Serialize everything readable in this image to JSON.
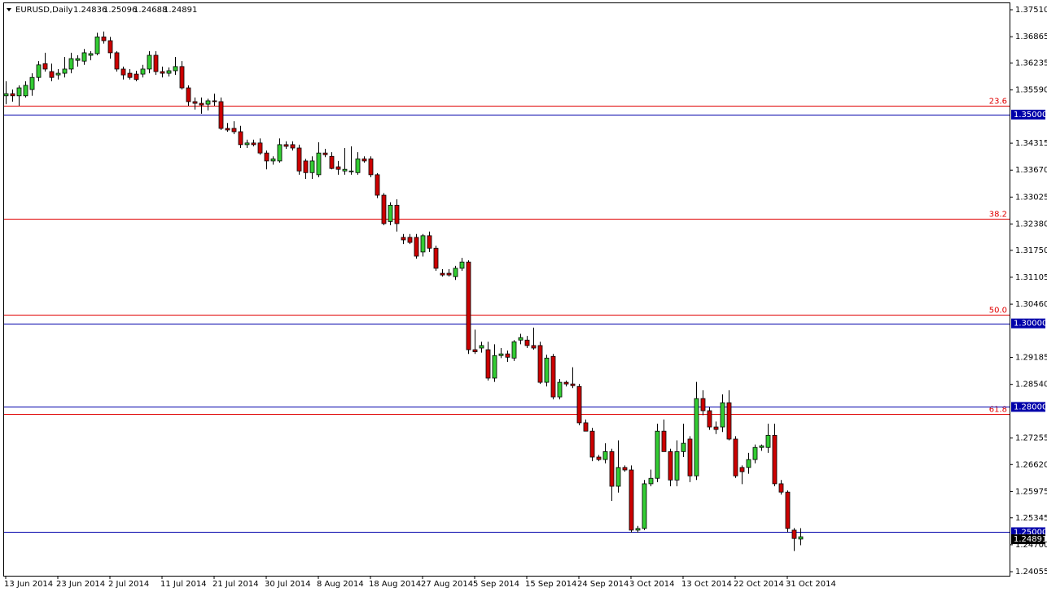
{
  "chart_data": {
    "type": "candlestick",
    "title": "EURUSD,Daily",
    "categories": [
      "13 Jun 2014",
      null,
      null,
      null,
      null,
      null,
      null,
      null,
      "23 Jun 2014",
      null,
      null,
      null,
      null,
      null,
      null,
      null,
      "2 Jul 2014",
      null,
      null,
      null,
      null,
      null,
      null,
      null,
      "11 Jul 2014",
      null,
      null,
      null,
      null,
      null,
      null,
      null,
      "21 Jul 2014",
      null,
      null,
      null,
      null,
      null,
      null,
      null,
      "30 Jul 2014",
      null,
      null,
      null,
      null,
      null,
      null,
      null,
      "8 Aug 2014",
      null,
      null,
      null,
      null,
      null,
      null,
      null,
      "18 Aug 2014",
      null,
      null,
      null,
      null,
      null,
      null,
      null,
      "27 Aug 2014",
      null,
      null,
      null,
      null,
      null,
      null,
      null,
      "5 Sep 2014",
      null,
      null,
      null,
      null,
      null,
      null,
      null,
      "15 Sep 2014",
      null,
      null,
      null,
      null,
      null,
      null,
      null,
      "24 Sep 2014",
      null,
      null,
      null,
      null,
      null,
      null,
      null,
      "3 Oct 2014",
      null,
      null,
      null,
      null,
      null,
      null,
      null,
      "13 Oct 2014",
      null,
      null,
      null,
      null,
      null,
      null,
      null,
      "22 Oct 2014",
      null,
      null,
      null,
      null,
      null,
      null,
      null,
      "31 Oct 2014",
      null,
      null
    ],
    "open": [
      1.3545,
      1.355,
      1.3545,
      1.3545,
      1.356,
      1.3589,
      1.3622,
      1.3603,
      1.3595,
      1.3599,
      1.3609,
      1.363,
      1.3628,
      1.3642,
      1.3646,
      1.3686,
      1.3677,
      1.3648,
      1.3609,
      1.3599,
      1.3597,
      1.3597,
      1.3609,
      1.3642,
      1.3603,
      1.3599,
      1.3605,
      1.3615,
      1.3564,
      1.3531,
      1.3527,
      1.3525,
      1.3533,
      1.3531,
      1.3467,
      1.3467,
      1.3459,
      1.3428,
      1.3432,
      1.3432,
      1.3408,
      1.3389,
      1.3389,
      1.3428,
      1.3428,
      1.342,
      1.3389,
      1.3361,
      1.3356,
      1.3408,
      1.34,
      1.3375,
      1.3365,
      1.3365,
      1.3361,
      1.3394,
      1.3394,
      1.3356,
      1.3307,
      1.3244,
      1.3283,
      1.3206,
      1.3206,
      1.3206,
      1.3171,
      1.321,
      1.318,
      1.312,
      1.312,
      1.3112,
      1.3132,
      1.3147,
      1.2937,
      1.2941,
      1.2937,
      1.2869,
      1.2923,
      1.2927,
      1.2917,
      1.296,
      1.296,
      1.2947,
      1.2947,
      1.2859,
      1.2921,
      1.2824,
      1.2859,
      1.2855,
      1.2849,
      1.2762,
      1.2742,
      1.268,
      1.2674,
      1.2693,
      1.261,
      1.2655,
      1.2649,
      1.2505,
      1.2509,
      1.2616,
      1.2629,
      1.2742,
      1.2693,
      1.2625,
      1.2693,
      1.2723,
      1.2635,
      1.282,
      1.2791,
      1.2752,
      1.2752,
      1.281,
      1.2723,
      1.2655,
      1.2655,
      1.2674,
      1.2703,
      1.2703,
      1.2732,
      1.2616,
      1.2596,
      1.2505,
      1.24836
    ],
    "high": [
      1.358,
      1.356,
      1.357,
      1.358,
      1.3599,
      1.3628,
      1.3648,
      1.3622,
      1.3609,
      1.3638,
      1.3648,
      1.3642,
      1.3657,
      1.3652,
      1.3696,
      1.3699,
      1.3686,
      1.3652,
      1.3615,
      1.3609,
      1.3605,
      1.3619,
      1.3652,
      1.3652,
      1.3615,
      1.3613,
      1.3638,
      1.3628,
      1.357,
      1.3541,
      1.3541,
      1.3538,
      1.355,
      1.3541,
      1.348,
      1.3484,
      1.3473,
      1.344,
      1.344,
      1.3443,
      1.3414,
      1.34,
      1.3443,
      1.3436,
      1.3436,
      1.3428,
      1.3394,
      1.34,
      1.3434,
      1.3418,
      1.341,
      1.3389,
      1.342,
      1.3424,
      1.341,
      1.34,
      1.34,
      1.336,
      1.3312,
      1.329,
      1.3297,
      1.3214,
      1.3214,
      1.3214,
      1.3214,
      1.322,
      1.3186,
      1.313,
      1.313,
      1.3138,
      1.3157,
      1.3151,
      1.2985,
      1.2956,
      1.2956,
      1.295,
      1.2941,
      1.2935,
      1.296,
      1.2975,
      1.297,
      1.299,
      1.2956,
      1.2925,
      1.2927,
      1.2867,
      1.2863,
      1.2895,
      1.2855,
      1.277,
      1.275,
      1.2685,
      1.2713,
      1.27,
      1.272,
      1.266,
      1.266,
      1.2515,
      1.2625,
      1.265,
      1.276,
      1.277,
      1.27,
      1.272,
      1.276,
      1.273,
      1.286,
      1.284,
      1.28,
      1.2765,
      1.283,
      1.284,
      1.273,
      1.266,
      1.269,
      1.271,
      1.271,
      1.276,
      1.276,
      1.2625,
      1.26,
      1.251,
      1.25096
    ],
    "low": [
      1.3525,
      1.3531,
      1.3521,
      1.3541,
      1.3545,
      1.358,
      1.3603,
      1.358,
      1.3584,
      1.3589,
      1.3599,
      1.3615,
      1.3619,
      1.363,
      1.3642,
      1.367,
      1.3634,
      1.3603,
      1.3584,
      1.3584,
      1.358,
      1.3589,
      1.3599,
      1.3595,
      1.3589,
      1.3591,
      1.3595,
      1.356,
      1.3521,
      1.3512,
      1.3502,
      1.351,
      1.3521,
      1.3463,
      1.3459,
      1.3453,
      1.342,
      1.342,
      1.3424,
      1.3404,
      1.3369,
      1.338,
      1.3385,
      1.3418,
      1.3414,
      1.3356,
      1.3346,
      1.3346,
      1.335,
      1.3398,
      1.3369,
      1.3356,
      1.3356,
      1.3356,
      1.3356,
      1.3385,
      1.335,
      1.33,
      1.3235,
      1.3235,
      1.322,
      1.319,
      1.319,
      1.3155,
      1.316,
      1.3171,
      1.3126,
      1.3112,
      1.3112,
      1.3104,
      1.3126,
      1.2927,
      1.2927,
      1.293,
      1.2863,
      1.286,
      1.2917,
      1.2908,
      1.291,
      1.295,
      1.2941,
      1.2937,
      1.2855,
      1.2849,
      1.2818,
      1.2818,
      1.2849,
      1.2845,
      1.2756,
      1.2742,
      1.267,
      1.267,
      1.2665,
      1.2575,
      1.2595,
      1.2645,
      1.2499,
      1.2499,
      1.2505,
      1.261,
      1.262,
      1.2693,
      1.261,
      1.261,
      1.268,
      1.262,
      1.2625,
      1.278,
      1.2745,
      1.2735,
      1.274,
      1.272,
      1.263,
      1.2615,
      1.264,
      1.2665,
      1.2695,
      1.269,
      1.261,
      1.259,
      1.25,
      1.2455,
      1.24688
    ],
    "close": [
      1.355,
      1.3545,
      1.3564,
      1.357,
      1.3589,
      1.3619,
      1.3609,
      1.3589,
      1.3599,
      1.3609,
      1.3634,
      1.3634,
      1.3648,
      1.3646,
      1.3686,
      1.3677,
      1.3648,
      1.3609,
      1.3595,
      1.3589,
      1.3584,
      1.3609,
      1.3642,
      1.3603,
      1.3599,
      1.3605,
      1.3615,
      1.3564,
      1.3531,
      1.3527,
      1.3523,
      1.3533,
      1.3531,
      1.3467,
      1.3463,
      1.3459,
      1.3428,
      1.3432,
      1.3428,
      1.3408,
      1.3389,
      1.3394,
      1.3428,
      1.3424,
      1.342,
      1.3365,
      1.3361,
      1.3389,
      1.3408,
      1.3404,
      1.3371,
      1.3369,
      1.3369,
      1.3365,
      1.3394,
      1.3389,
      1.3356,
      1.3307,
      1.3239,
      1.3283,
      1.3239,
      1.32,
      1.3194,
      1.3161,
      1.321,
      1.318,
      1.3132,
      1.3116,
      1.3116,
      1.3132,
      1.3147,
      1.2937,
      1.2932,
      1.2947,
      1.2869,
      1.2923,
      1.2927,
      1.2919,
      1.2956,
      1.2966,
      1.2947,
      1.2941,
      1.2859,
      1.2917,
      1.2824,
      1.2859,
      1.2855,
      1.2851,
      1.2762,
      1.2742,
      1.268,
      1.2674,
      1.2693,
      1.261,
      1.2655,
      1.2649,
      1.2505,
      1.2509,
      1.2616,
      1.2629,
      1.2742,
      1.2693,
      1.2625,
      1.2693,
      1.2713,
      1.2635,
      1.282,
      1.2791,
      1.2752,
      1.2746,
      1.281,
      1.2723,
      1.2635,
      1.2645,
      1.2674,
      1.2703,
      1.2707,
      1.2732,
      1.2616,
      1.2596,
      1.2509,
      1.2485,
      1.24891
    ],
    "up_color": "#33cc33",
    "down_color": "#cc0000",
    "wick_color": "#000000",
    "ylim": [
      1.23958,
      1.37666
    ],
    "yticks": [
      {
        "value": 1.3751,
        "label": "1.37510"
      },
      {
        "value": 1.36865,
        "label": "1.36865"
      },
      {
        "value": 1.36235,
        "label": "1.36235"
      },
      {
        "value": 1.3559,
        "label": "1.35590"
      },
      {
        "value": 1.34315,
        "label": "1.34315"
      },
      {
        "value": 1.3367,
        "label": "1.33670"
      },
      {
        "value": 1.33025,
        "label": "1.33025"
      },
      {
        "value": 1.3238,
        "label": "1.32380"
      },
      {
        "value": 1.3175,
        "label": "1.31750"
      },
      {
        "value": 1.31105,
        "label": "1.31105"
      },
      {
        "value": 1.3046,
        "label": "1.30460"
      },
      {
        "value": 1.29185,
        "label": "1.29185"
      },
      {
        "value": 1.2854,
        "label": "1.28540"
      },
      {
        "value": 1.27255,
        "label": "1.27255"
      },
      {
        "value": 1.2662,
        "label": "1.26620"
      },
      {
        "value": 1.25975,
        "label": "1.25975"
      },
      {
        "value": 1.25345,
        "label": "1.25345"
      },
      {
        "value": 1.247,
        "label": "1.24700"
      },
      {
        "value": 1.24055,
        "label": "1.24055"
      }
    ],
    "levels": [
      {
        "value": 1.35,
        "label": "1.35000"
      },
      {
        "value": 1.3,
        "label": "1.30000"
      },
      {
        "value": 1.28,
        "label": "1.28000"
      },
      {
        "value": 1.25,
        "label": "1.25000"
      }
    ],
    "level_color": "#0000aa",
    "fib_levels": [
      {
        "value": 1.3522,
        "label": "23.6"
      },
      {
        "value": 1.325,
        "label": "38.2"
      },
      {
        "value": 1.302,
        "label": "50.0"
      },
      {
        "value": 1.2784,
        "label": "61.8"
      }
    ],
    "fib_color": "#e00000"
  }
}
